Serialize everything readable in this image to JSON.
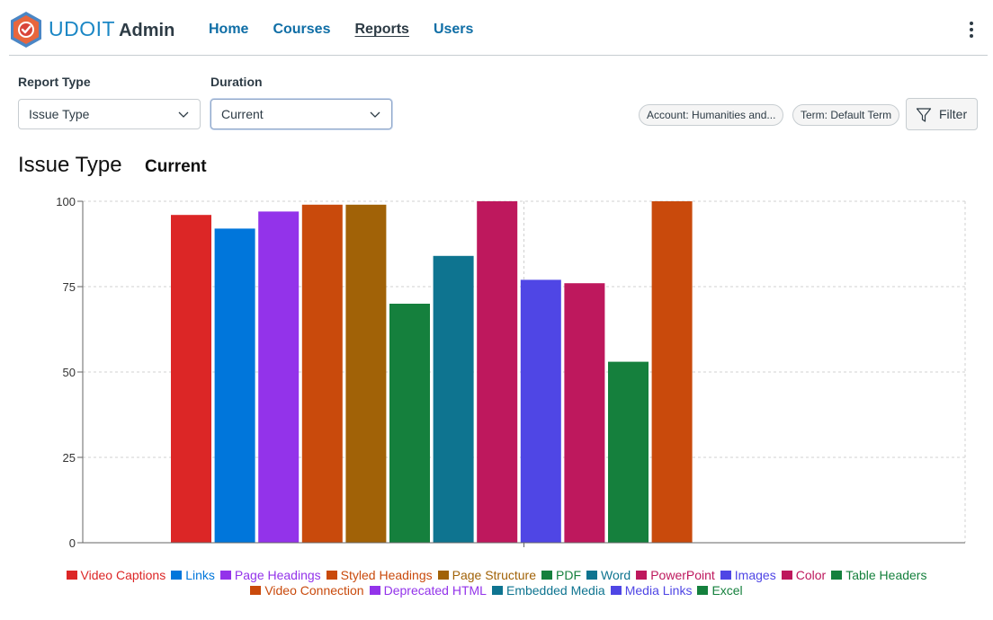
{
  "header": {
    "brand_main": "UDOIT",
    "brand_sub": "Admin",
    "nav": [
      {
        "label": "Home",
        "active": false
      },
      {
        "label": "Courses",
        "active": false
      },
      {
        "label": "Reports",
        "active": true
      },
      {
        "label": "Users",
        "active": false
      }
    ]
  },
  "filters": {
    "report_type_label": "Report Type",
    "report_type_value": "Issue Type",
    "duration_label": "Duration",
    "duration_value": "Current",
    "account_chip": "Account: Humanities and...",
    "term_chip": "Term: Default Term",
    "filter_button": "Filter"
  },
  "report": {
    "title": "Issue Type",
    "duration": "Current"
  },
  "chart_data": {
    "type": "bar",
    "ylim": [
      0,
      100
    ],
    "yticks": [
      0,
      25,
      50,
      75,
      100
    ],
    "grid": true,
    "legend_position": "bottom",
    "series": [
      {
        "name": "Video Captions",
        "value": 96,
        "color": "#dc2626"
      },
      {
        "name": "Links",
        "value": 92,
        "color": "#0076db"
      },
      {
        "name": "Page Headings",
        "value": 97,
        "color": "#9333ea"
      },
      {
        "name": "Styled Headings",
        "value": 99,
        "color": "#c94a0c"
      },
      {
        "name": "Page Structure",
        "value": 99,
        "color": "#a16207"
      },
      {
        "name": "PDF",
        "value": 70,
        "color": "#15803d"
      },
      {
        "name": "Word",
        "value": 84,
        "color": "#0e7490"
      },
      {
        "name": "PowerPoint",
        "value": 100,
        "color": "#be185d"
      },
      {
        "name": "Images",
        "value": 77,
        "color": "#4f46e5"
      },
      {
        "name": "Color",
        "value": 76,
        "color": "#be185d"
      },
      {
        "name": "Table Headers",
        "value": 53,
        "color": "#15803d"
      },
      {
        "name": "Video Connection",
        "value": 100,
        "color": "#c94a0c"
      },
      {
        "name": "Deprecated HTML",
        "value": 0,
        "color": "#9333ea"
      },
      {
        "name": "Embedded Media",
        "value": 0,
        "color": "#0e7490"
      },
      {
        "name": "Media Links",
        "value": 0,
        "color": "#4f46e5"
      },
      {
        "name": "Excel",
        "value": 0,
        "color": "#15803d"
      }
    ]
  }
}
